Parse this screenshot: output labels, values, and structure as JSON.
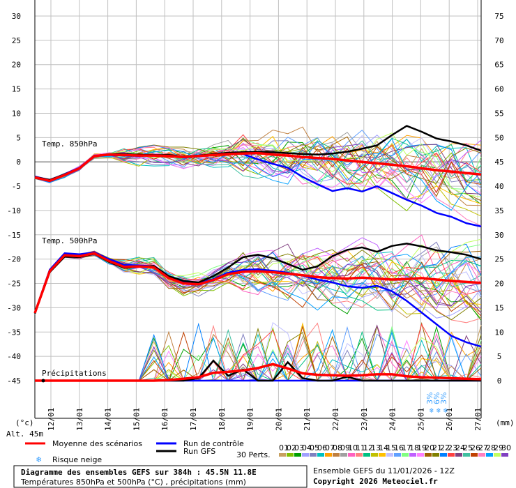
{
  "chart_data": {
    "type": "line",
    "xlabel_unit_left": "(°c)",
    "xlabel_unit_right": "(mm)",
    "altitude_label": "Alt. 45m",
    "x_dates": [
      "12/01",
      "13/01",
      "14/01",
      "15/01",
      "16/01",
      "17/01",
      "18/01",
      "19/01",
      "20/01",
      "21/01",
      "22/01",
      "23/01",
      "24/01",
      "25/01",
      "26/01",
      "27/01"
    ],
    "y_left_ticks": [
      30,
      25,
      20,
      15,
      10,
      5,
      0,
      -5,
      -10,
      -15,
      -20,
      -25,
      -30,
      -35,
      -40,
      -45
    ],
    "y_right_ticks": [
      75,
      70,
      65,
      60,
      55,
      50,
      45,
      40,
      35,
      30,
      25,
      20,
      15,
      10,
      5,
      0
    ],
    "ylim_left": [
      -45,
      30
    ],
    "ylim_right": [
      0,
      75
    ],
    "panel_labels": {
      "t850": "Temp. 850hPa",
      "t500": "Temp. 500hPa",
      "precip": "Précipitations"
    },
    "grid": true,
    "series": [
      {
        "name": "Moyenne des scénarios",
        "color": "#ff0000",
        "t850": [
          -3.2,
          -3.9,
          -2.7,
          -1.3,
          1.2,
          1.5,
          1.4,
          1.3,
          1.3,
          1.2,
          1.0,
          1.2,
          1.4,
          1.6,
          1.7,
          1.8,
          1.5,
          1.3,
          1.0,
          0.8,
          0.6,
          0.3,
          0.0,
          -0.3,
          -0.6,
          -0.9,
          -1.3,
          -1.7,
          -2.0,
          -2.3,
          -2.6
        ],
        "t500": [
          -31.1,
          -22.5,
          -19.2,
          -19.4,
          -18.8,
          -20.4,
          -21.6,
          -21.5,
          -21.7,
          -23.9,
          -25.0,
          -25.2,
          -24.3,
          -23.1,
          -22.6,
          -22.5,
          -22.7,
          -23.0,
          -23.3,
          -23.7,
          -23.9,
          -24.0,
          -23.8,
          -24.0,
          -24.2,
          -24.1,
          -23.9,
          -24.2,
          -24.5,
          -24.7,
          -24.9
        ],
        "precip": [
          0,
          0,
          0,
          0,
          0,
          0,
          0,
          0,
          0,
          0.1,
          0.4,
          0.7,
          1.6,
          1.8,
          2.1,
          2.6,
          3.4,
          2.5,
          1.5,
          1.2,
          1.1,
          1.0,
          1.1,
          1.3,
          1.3,
          0.9,
          0.7,
          0.6,
          0.5,
          0.4,
          0.3
        ]
      },
      {
        "name": "Run de contrôle",
        "color": "#0000ff",
        "t850": [
          -3.0,
          -3.8,
          -2.5,
          -1.2,
          1.3,
          1.4,
          1.3,
          1.2,
          1.4,
          1.3,
          0.9,
          1.1,
          1.5,
          1.8,
          1.6,
          0.5,
          -0.4,
          -1.2,
          -3.1,
          -4.6,
          -6.0,
          -5.4,
          -6.1,
          -5.0,
          -6.4,
          -7.8,
          -9.0,
          -10.5,
          -11.3,
          -12.6,
          -13.3
        ],
        "t500": [
          -31.0,
          -22.2,
          -18.8,
          -19.0,
          -18.6,
          -20.0,
          -21.2,
          -21.3,
          -21.5,
          -23.6,
          -24.6,
          -25.0,
          -24.1,
          -22.8,
          -22.2,
          -22.1,
          -22.4,
          -22.8,
          -23.4,
          -24.2,
          -24.8,
          -25.6,
          -25.9,
          -25.5,
          -26.6,
          -28.6,
          -31.0,
          -33.4,
          -35.8,
          -37.1,
          -38.0
        ],
        "precip": [
          0,
          0,
          0,
          0,
          0,
          0,
          0,
          0,
          0,
          0,
          0,
          0,
          0,
          0,
          0,
          0,
          0,
          0,
          0,
          0,
          0,
          0,
          0,
          0,
          0,
          0,
          0,
          0,
          0,
          0,
          0
        ]
      },
      {
        "name": "Run GFS",
        "color": "#000000",
        "t850": [
          -3.1,
          -3.7,
          -2.6,
          -1.3,
          1.2,
          1.6,
          1.6,
          1.5,
          1.4,
          1.4,
          1.1,
          1.3,
          1.6,
          1.9,
          2.0,
          2.1,
          2.0,
          1.8,
          1.6,
          1.5,
          1.7,
          2.1,
          2.7,
          3.4,
          5.5,
          7.4,
          6.2,
          4.8,
          4.2,
          3.4,
          2.3
        ],
        "t500": [
          -31.2,
          -22.7,
          -19.5,
          -19.6,
          -18.9,
          -20.6,
          -21.8,
          -21.6,
          -21.4,
          -23.5,
          -24.5,
          -24.8,
          -23.5,
          -21.7,
          -19.6,
          -19.1,
          -19.8,
          -21.0,
          -22.2,
          -21.5,
          -19.4,
          -18.1,
          -17.6,
          -18.5,
          -17.3,
          -16.8,
          -17.4,
          -18.2,
          -18.6,
          -19.1,
          -20.0
        ],
        "precip": [
          0,
          0,
          0,
          0,
          0,
          0,
          0,
          0,
          0,
          0,
          0,
          0.5,
          4.1,
          1.0,
          2.3,
          0,
          0,
          3.8,
          0.5,
          0,
          0,
          0.8,
          0,
          0,
          0,
          0,
          0,
          0,
          0,
          0,
          0
        ]
      }
    ],
    "legend": {
      "mean": "Moyenne des scénarios",
      "control": "Run de contrôle",
      "gfs": "Run GFS",
      "snow": "Risque neige",
      "perts": "30 Perts."
    },
    "pert_numbers": [
      "01",
      "02",
      "03",
      "04",
      "05",
      "06",
      "07",
      "08",
      "09",
      "10",
      "11",
      "12",
      "13",
      "14",
      "15",
      "16",
      "17",
      "18",
      "19",
      "20",
      "21",
      "22",
      "23",
      "24",
      "25",
      "26",
      "27",
      "28",
      "29",
      "30"
    ],
    "pert_colors": [
      "#c8a060",
      "#80c000",
      "#00a000",
      "#a0a0ff",
      "#8080c0",
      "#00c0c0",
      "#ffa000",
      "#c08040",
      "#a0a0a0",
      "#ff60c0",
      "#ff8080",
      "#00c080",
      "#c0c000",
      "#ffc000",
      "#c0c0ff",
      "#60a0ff",
      "#80ff80",
      "#c060ff",
      "#ff80ff",
      "#a06000",
      "#808000",
      "#0080ff",
      "#ff4040",
      "#804080",
      "#40c0a0",
      "#c04000",
      "#ff80c0",
      "#00a0ff",
      "#c0ff60",
      "#8040c0"
    ],
    "snow_flags": [
      "3%",
      "6%",
      "3%"
    ]
  },
  "footer": {
    "title": "Diagramme des ensembles GEFS sur 384h : 45.5N 11.8E",
    "subtitle": "Températures 850hPa et 500hPa (°C) , précipitations (mm)",
    "run": "Ensemble GEFS du 11/01/2026 - 12Z",
    "copyright": "Copyright 2026 Meteociel.fr"
  }
}
